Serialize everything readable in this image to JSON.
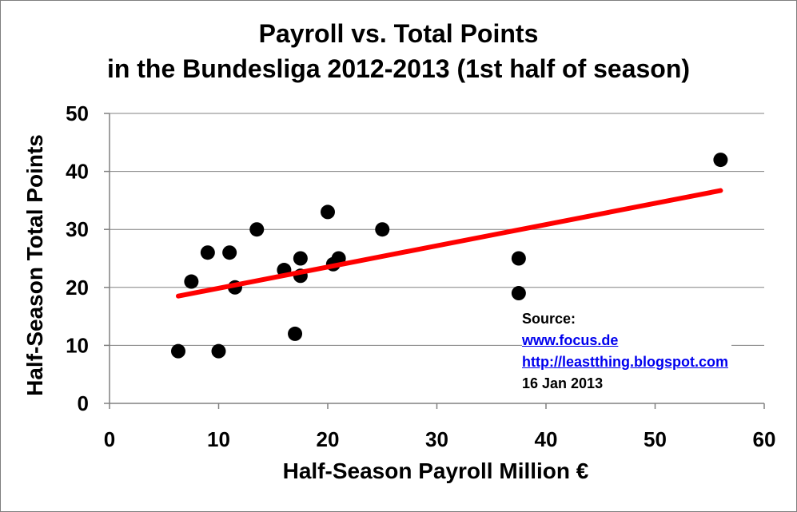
{
  "chart_data": {
    "type": "scatter",
    "title": "Payroll vs. Total Points",
    "subtitle": "in the Bundesliga 2012-2013 (1st half of season)",
    "xlabel": "Half-Season Payroll Million €",
    "ylabel": "Half-Season Total Points",
    "xlim": [
      0,
      60
    ],
    "ylim": [
      0,
      50
    ],
    "xticks": [
      0,
      10,
      20,
      30,
      40,
      50,
      60
    ],
    "yticks": [
      0,
      10,
      20,
      30,
      40,
      50
    ],
    "grid": "horizontal",
    "points": [
      {
        "x": 6.3,
        "y": 9
      },
      {
        "x": 7.5,
        "y": 21
      },
      {
        "x": 9.0,
        "y": 26
      },
      {
        "x": 10.0,
        "y": 9
      },
      {
        "x": 11.0,
        "y": 26
      },
      {
        "x": 11.5,
        "y": 20
      },
      {
        "x": 13.5,
        "y": 30
      },
      {
        "x": 16.0,
        "y": 23
      },
      {
        "x": 17.0,
        "y": 12
      },
      {
        "x": 17.5,
        "y": 25
      },
      {
        "x": 17.5,
        "y": 22
      },
      {
        "x": 20.0,
        "y": 33
      },
      {
        "x": 20.5,
        "y": 24
      },
      {
        "x": 21.0,
        "y": 25
      },
      {
        "x": 25.0,
        "y": 30
      },
      {
        "x": 37.5,
        "y": 25
      },
      {
        "x": 37.5,
        "y": 19
      },
      {
        "x": 56.0,
        "y": 42
      }
    ],
    "trendline": {
      "x": [
        6.3,
        56.0
      ],
      "y": [
        18.5,
        36.7
      ]
    },
    "colors": {
      "points": "#000000",
      "trendline": "#ff0000",
      "grid": "#808080"
    }
  },
  "source": {
    "label": "Source:",
    "link1": "www.focus.de",
    "link2": "http://leastthing.blogspot.com",
    "date": "16 Jan 2013"
  }
}
